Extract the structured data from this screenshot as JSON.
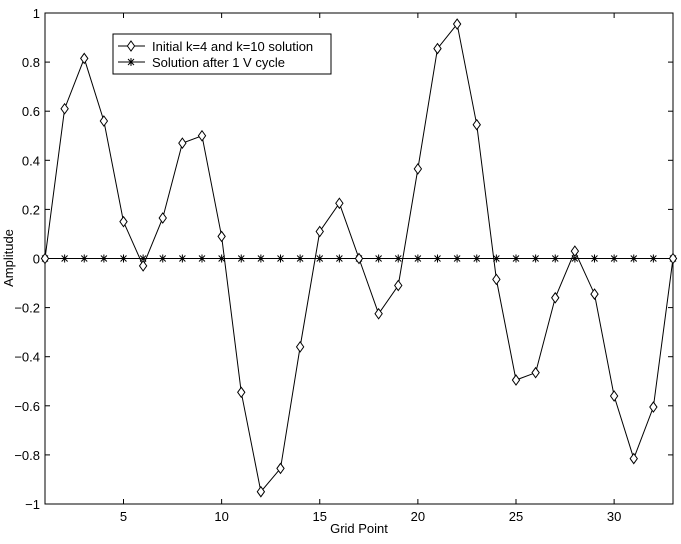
{
  "chart_data": {
    "type": "line",
    "title": "",
    "xlabel": "Grid Point",
    "ylabel": "Amplitude",
    "xlim": [
      1,
      33
    ],
    "ylim": [
      -1,
      1
    ],
    "x_ticks": [
      5,
      10,
      15,
      20,
      25,
      30
    ],
    "y_ticks": [
      -1,
      -0.8,
      -0.6,
      -0.4,
      -0.2,
      0,
      0.2,
      0.4,
      0.6,
      0.8,
      1
    ],
    "y_tick_labels": [
      "−1",
      "−0.8",
      "−0.6",
      "−0.4",
      "−0.2",
      "0",
      "0.2",
      "0.4",
      "0.6",
      "0.8",
      "1"
    ],
    "grid": false,
    "legend_position": "top-left",
    "colors": {
      "line": "#000000",
      "background": "#ffffff"
    },
    "x": [
      1,
      2,
      3,
      4,
      5,
      6,
      7,
      8,
      9,
      10,
      11,
      12,
      13,
      14,
      15,
      16,
      17,
      18,
      19,
      20,
      21,
      22,
      23,
      24,
      25,
      26,
      27,
      28,
      29,
      30,
      31,
      32,
      33
    ],
    "series": [
      {
        "name": "Initial k=4 and k=10 solution",
        "marker": "diamond",
        "values": [
          0,
          0.61,
          0.815,
          0.56,
          0.15,
          -0.03,
          0.165,
          0.47,
          0.5,
          0.09,
          -0.545,
          -0.95,
          -0.855,
          -0.36,
          0.11,
          0.225,
          0,
          -0.225,
          -0.11,
          0.365,
          0.855,
          0.955,
          0.545,
          -0.085,
          -0.495,
          -0.465,
          -0.16,
          0.03,
          -0.145,
          -0.56,
          -0.815,
          -0.605,
          0
        ]
      },
      {
        "name": "Solution after 1 V cycle",
        "marker": "asterisk",
        "values": [
          0,
          0,
          0,
          0,
          0,
          0,
          0,
          0,
          0,
          0,
          0,
          0,
          0,
          0,
          0,
          0,
          0,
          0,
          0,
          0,
          0,
          0,
          0,
          0,
          0,
          0,
          0,
          0,
          0,
          0,
          0,
          0,
          0
        ]
      }
    ]
  }
}
